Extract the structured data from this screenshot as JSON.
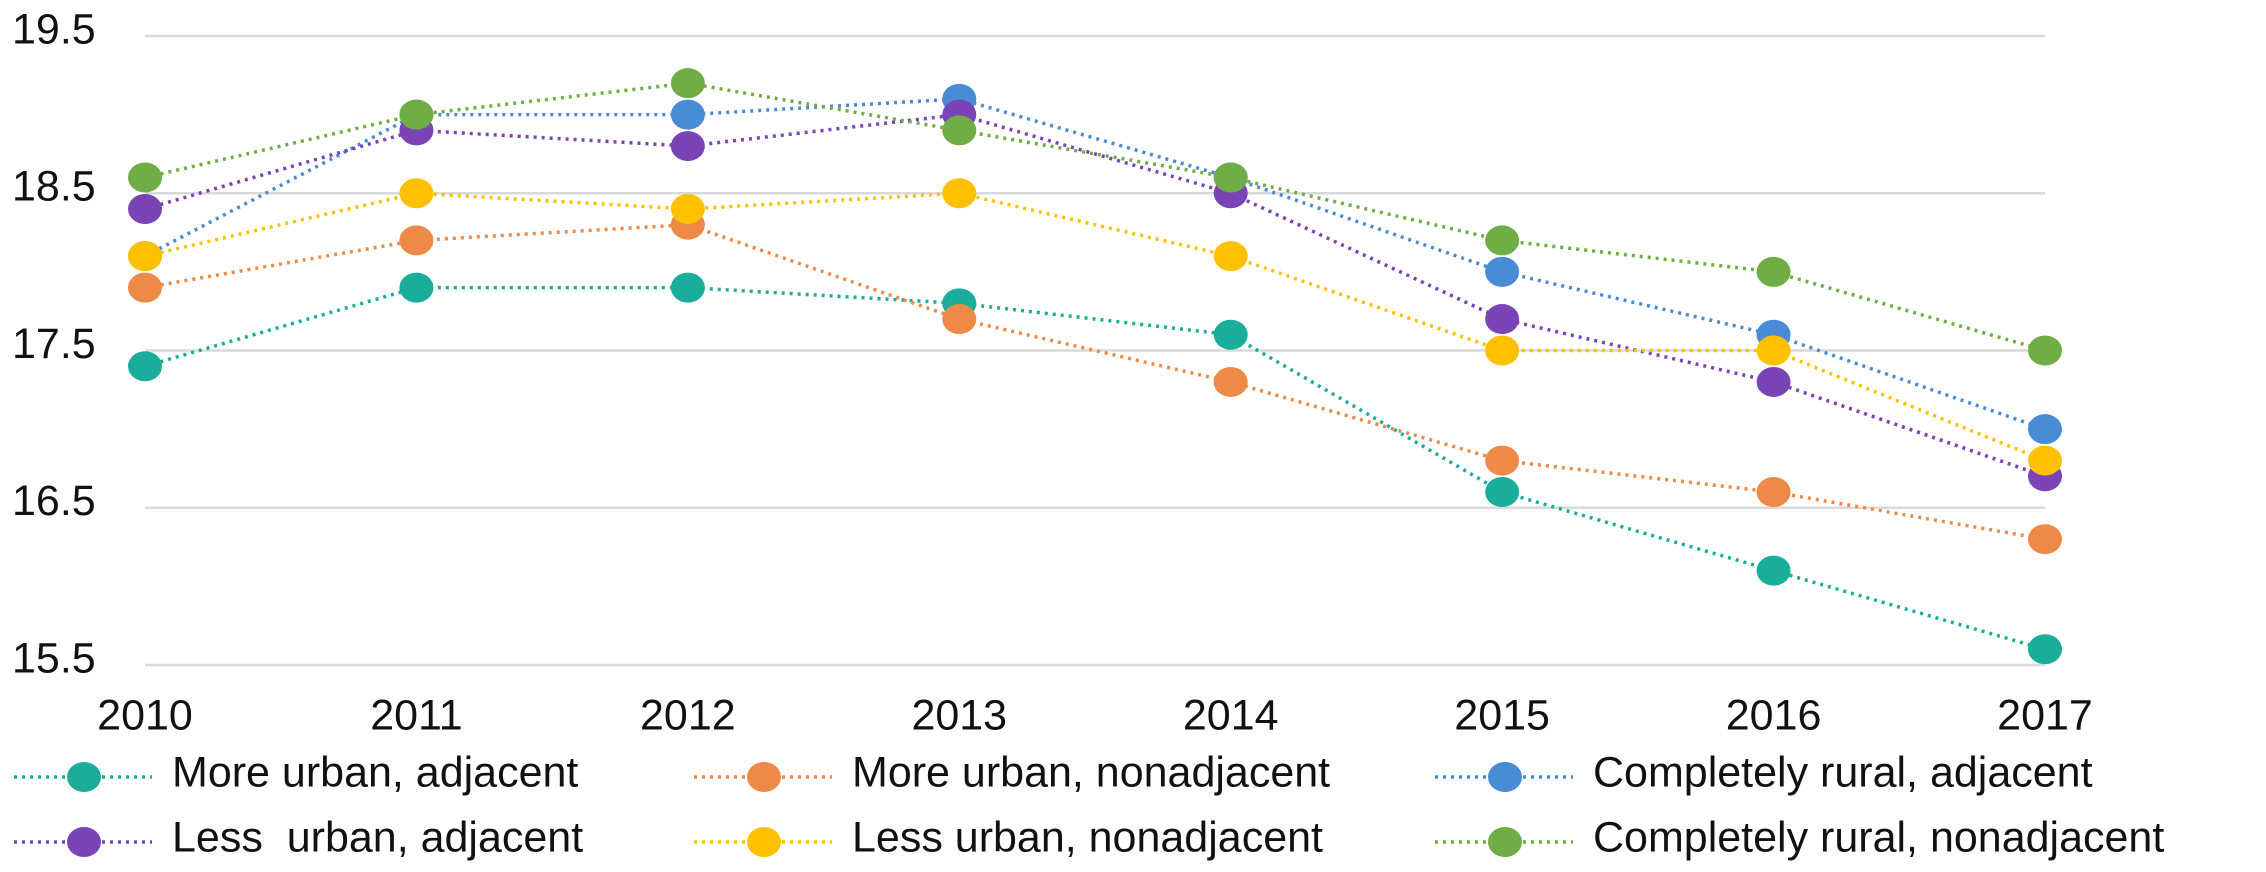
{
  "chart_data": {
    "type": "line",
    "categories": [
      "2010",
      "2011",
      "2012",
      "2013",
      "2014",
      "2015",
      "2016",
      "2017"
    ],
    "series": [
      {
        "name": "More urban, adjacent",
        "color": "#1aae9a",
        "values": [
          17.4,
          17.9,
          17.9,
          17.8,
          17.6,
          16.6,
          16.1,
          15.6
        ]
      },
      {
        "name": "More urban, nonadjacent",
        "color": "#ed8a47",
        "values": [
          17.9,
          18.2,
          18.3,
          17.7,
          17.3,
          16.8,
          16.6,
          16.3
        ]
      },
      {
        "name": "Completely rural, adjacent",
        "color": "#4a8bd6",
        "values": [
          18.1,
          19.0,
          19.0,
          19.1,
          18.6,
          18.0,
          17.6,
          17.0
        ]
      },
      {
        "name": "Less  urban, adjacent",
        "color": "#7a43b6",
        "values": [
          18.4,
          18.9,
          18.8,
          19.0,
          18.5,
          17.7,
          17.3,
          16.7
        ]
      },
      {
        "name": "Less urban, nonadjacent",
        "color": "#ffc000",
        "values": [
          18.1,
          18.5,
          18.4,
          18.5,
          18.1,
          17.5,
          17.5,
          16.8
        ]
      },
      {
        "name": "Completely rural, nonadjacent",
        "color": "#70ad47",
        "values": [
          18.6,
          19.0,
          19.2,
          18.9,
          18.6,
          18.2,
          18.0,
          17.5
        ]
      }
    ],
    "ylim": [
      15.5,
      19.5
    ],
    "yticks": [
      15.5,
      16.5,
      17.5,
      18.5,
      19.5
    ],
    "grid": true
  }
}
